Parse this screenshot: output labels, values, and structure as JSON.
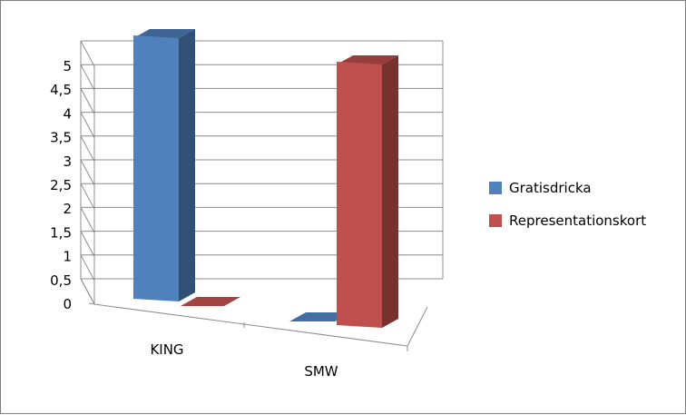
{
  "chart_data": {
    "type": "bar",
    "categories": [
      "KING",
      "SMW"
    ],
    "series": [
      {
        "name": "Gratisdricka",
        "values": [
          5,
          0
        ],
        "color": "#4F81BD"
      },
      {
        "name": "Representationskort",
        "values": [
          0,
          5
        ],
        "color": "#C0504D"
      }
    ],
    "ylim": [
      0,
      5
    ],
    "yticks": [
      "0",
      "0,5",
      "1",
      "1,5",
      "2",
      "2,5",
      "3",
      "3,5",
      "4",
      "4,5",
      "5"
    ],
    "grid": true,
    "legend": "right",
    "style": "3d-clustered-column"
  }
}
